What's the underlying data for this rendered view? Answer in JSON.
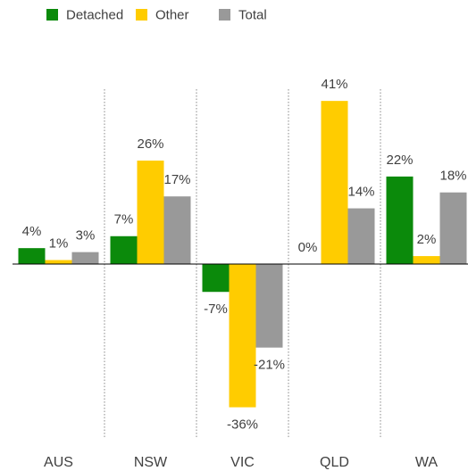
{
  "chart_data": {
    "type": "bar",
    "categories": [
      "AUS",
      "NSW",
      "VIC",
      "QLD",
      "WA"
    ],
    "series": [
      {
        "name": "Detached",
        "color": "#0b8a0b",
        "values": [
          4,
          7,
          -7,
          0,
          22
        ],
        "value_labels": [
          "4%",
          "7%",
          "-7%",
          "0%",
          "22%"
        ]
      },
      {
        "name": "Other",
        "color": "#ffcc00",
        "values": [
          1,
          26,
          -36,
          41,
          2
        ],
        "value_labels": [
          "1%",
          "26%",
          "-36%",
          "41%",
          "2%"
        ]
      },
      {
        "name": "Total",
        "color": "#999999",
        "values": [
          3,
          17,
          -21,
          14,
          18
        ],
        "value_labels": [
          "3%",
          "17%",
          "-21%",
          "14%",
          "18%"
        ]
      }
    ],
    "ylim": [
      -40,
      50
    ],
    "legend": "top-left"
  }
}
